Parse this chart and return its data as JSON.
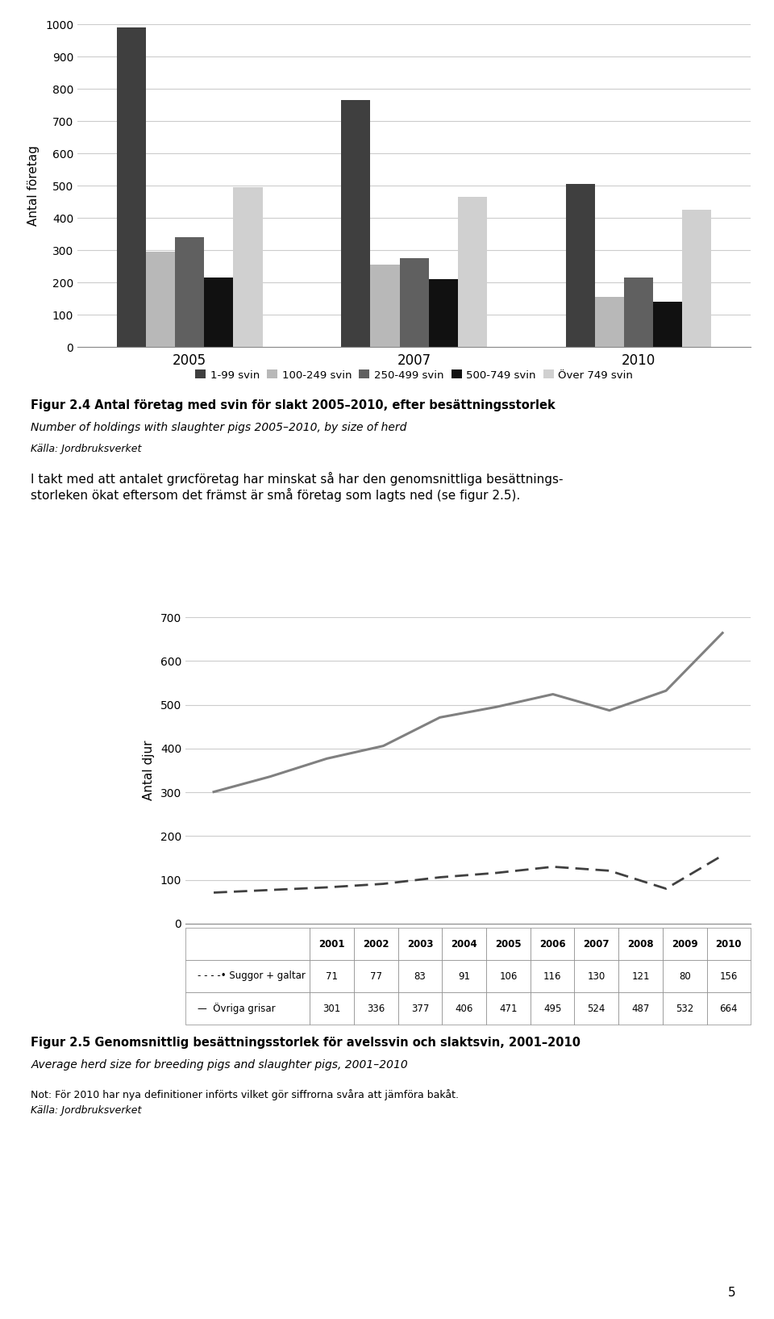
{
  "bar_chart": {
    "years": [
      "2005",
      "2007",
      "2010"
    ],
    "categories": [
      "1-99 svin",
      "100-249 svin",
      "250-499 svin",
      "500-749 svin",
      "Över 749 svin"
    ],
    "colors": [
      "#3f3f3f",
      "#b8b8b8",
      "#606060",
      "#111111",
      "#d0d0d0"
    ],
    "data": {
      "2005": [
        990,
        295,
        340,
        215,
        495
      ],
      "2007": [
        765,
        255,
        275,
        210,
        465
      ],
      "2010": [
        505,
        155,
        215,
        140,
        425
      ]
    },
    "ylabel": "Antal företag",
    "ylim": [
      0,
      1000
    ],
    "yticks": [
      0,
      100,
      200,
      300,
      400,
      500,
      600,
      700,
      800,
      900,
      1000
    ]
  },
  "fig24_title": "Figur 2.4 Antal företag med svin för slakt 2005–2010, efter besättningsstorlek",
  "fig24_subtitle": "Number of holdings with slaughter pigs 2005–2010, by size of herd",
  "fig24_source": "Källa: Jordbruksverket",
  "body_text_line1": "I takt med att antalet grисföretag har minskat så har den genomsnittliga besättnings-",
  "body_text_line2": "storleken ökat eftersom det främst är små företag som lagts ned (se figur 2.5).",
  "line_chart": {
    "years": [
      2001,
      2002,
      2003,
      2004,
      2005,
      2006,
      2007,
      2008,
      2009,
      2010
    ],
    "suggor_galtar": [
      71,
      77,
      83,
      91,
      106,
      116,
      130,
      121,
      80,
      156
    ],
    "ovriga_grisar": [
      301,
      336,
      377,
      406,
      471,
      495,
      524,
      487,
      532,
      664
    ],
    "ylabel": "Antal djur",
    "ylim": [
      0,
      700
    ],
    "yticks": [
      0,
      100,
      200,
      300,
      400,
      500,
      600,
      700
    ],
    "line_color_ovriga": "#808080",
    "line_color_suggor": "#404040"
  },
  "table_row1_label": "Suggor + galtar",
  "table_row2_label": "Övriga grisar",
  "fig25_title": "Figur 2.5 Genomsnittlig besättningsstorlek för avelssvin och slaktsvin, 2001–2010",
  "fig25_subtitle": "Average herd size for breeding pigs and slaughter pigs, 2001–2010",
  "fig25_note": "Not: För 2010 har nya definitioner införts vilket gör siffrorna svåra att jämföra bakåt.",
  "fig25_source": "Källa: Jordbruksverket",
  "page_number": "5",
  "background_color": "#ffffff",
  "text_color": "#000000"
}
